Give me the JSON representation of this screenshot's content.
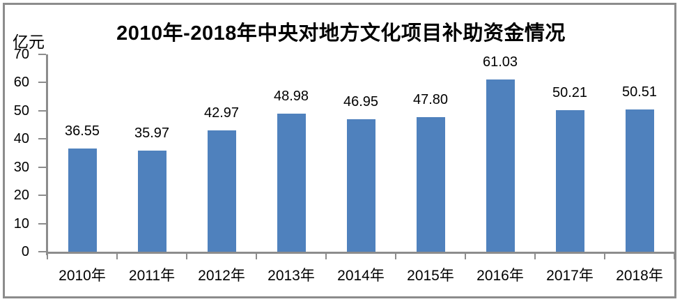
{
  "title": "2010年-2018年中央对地方文化项目补助资金情况",
  "y_axis_unit_label": "亿元",
  "colors": {
    "bar": "#4f81bd",
    "axis": "#8c8c8c",
    "frame": "#8c8c8c",
    "text": "#000000",
    "background": "#ffffff"
  },
  "chart_data": {
    "type": "bar",
    "title": "2010年-2018年中央对地方文化项目补助资金情况",
    "categories": [
      "2010年",
      "2011年",
      "2012年",
      "2013年",
      "2014年",
      "2015年",
      "2016年",
      "2017年",
      "2018年"
    ],
    "values": [
      36.55,
      35.97,
      42.97,
      48.98,
      46.95,
      47.8,
      61.03,
      50.21,
      50.51
    ],
    "value_labels": [
      "36.55",
      "35.97",
      "42.97",
      "48.98",
      "46.95",
      "47.80",
      "61.03",
      "50.21",
      "50.51"
    ],
    "xlabel": "",
    "ylabel": "亿元",
    "ylim": [
      0,
      70
    ],
    "yticks": [
      0,
      10,
      20,
      30,
      40,
      50,
      60,
      70
    ],
    "grid": false,
    "legend": "none",
    "data_labels": true
  }
}
